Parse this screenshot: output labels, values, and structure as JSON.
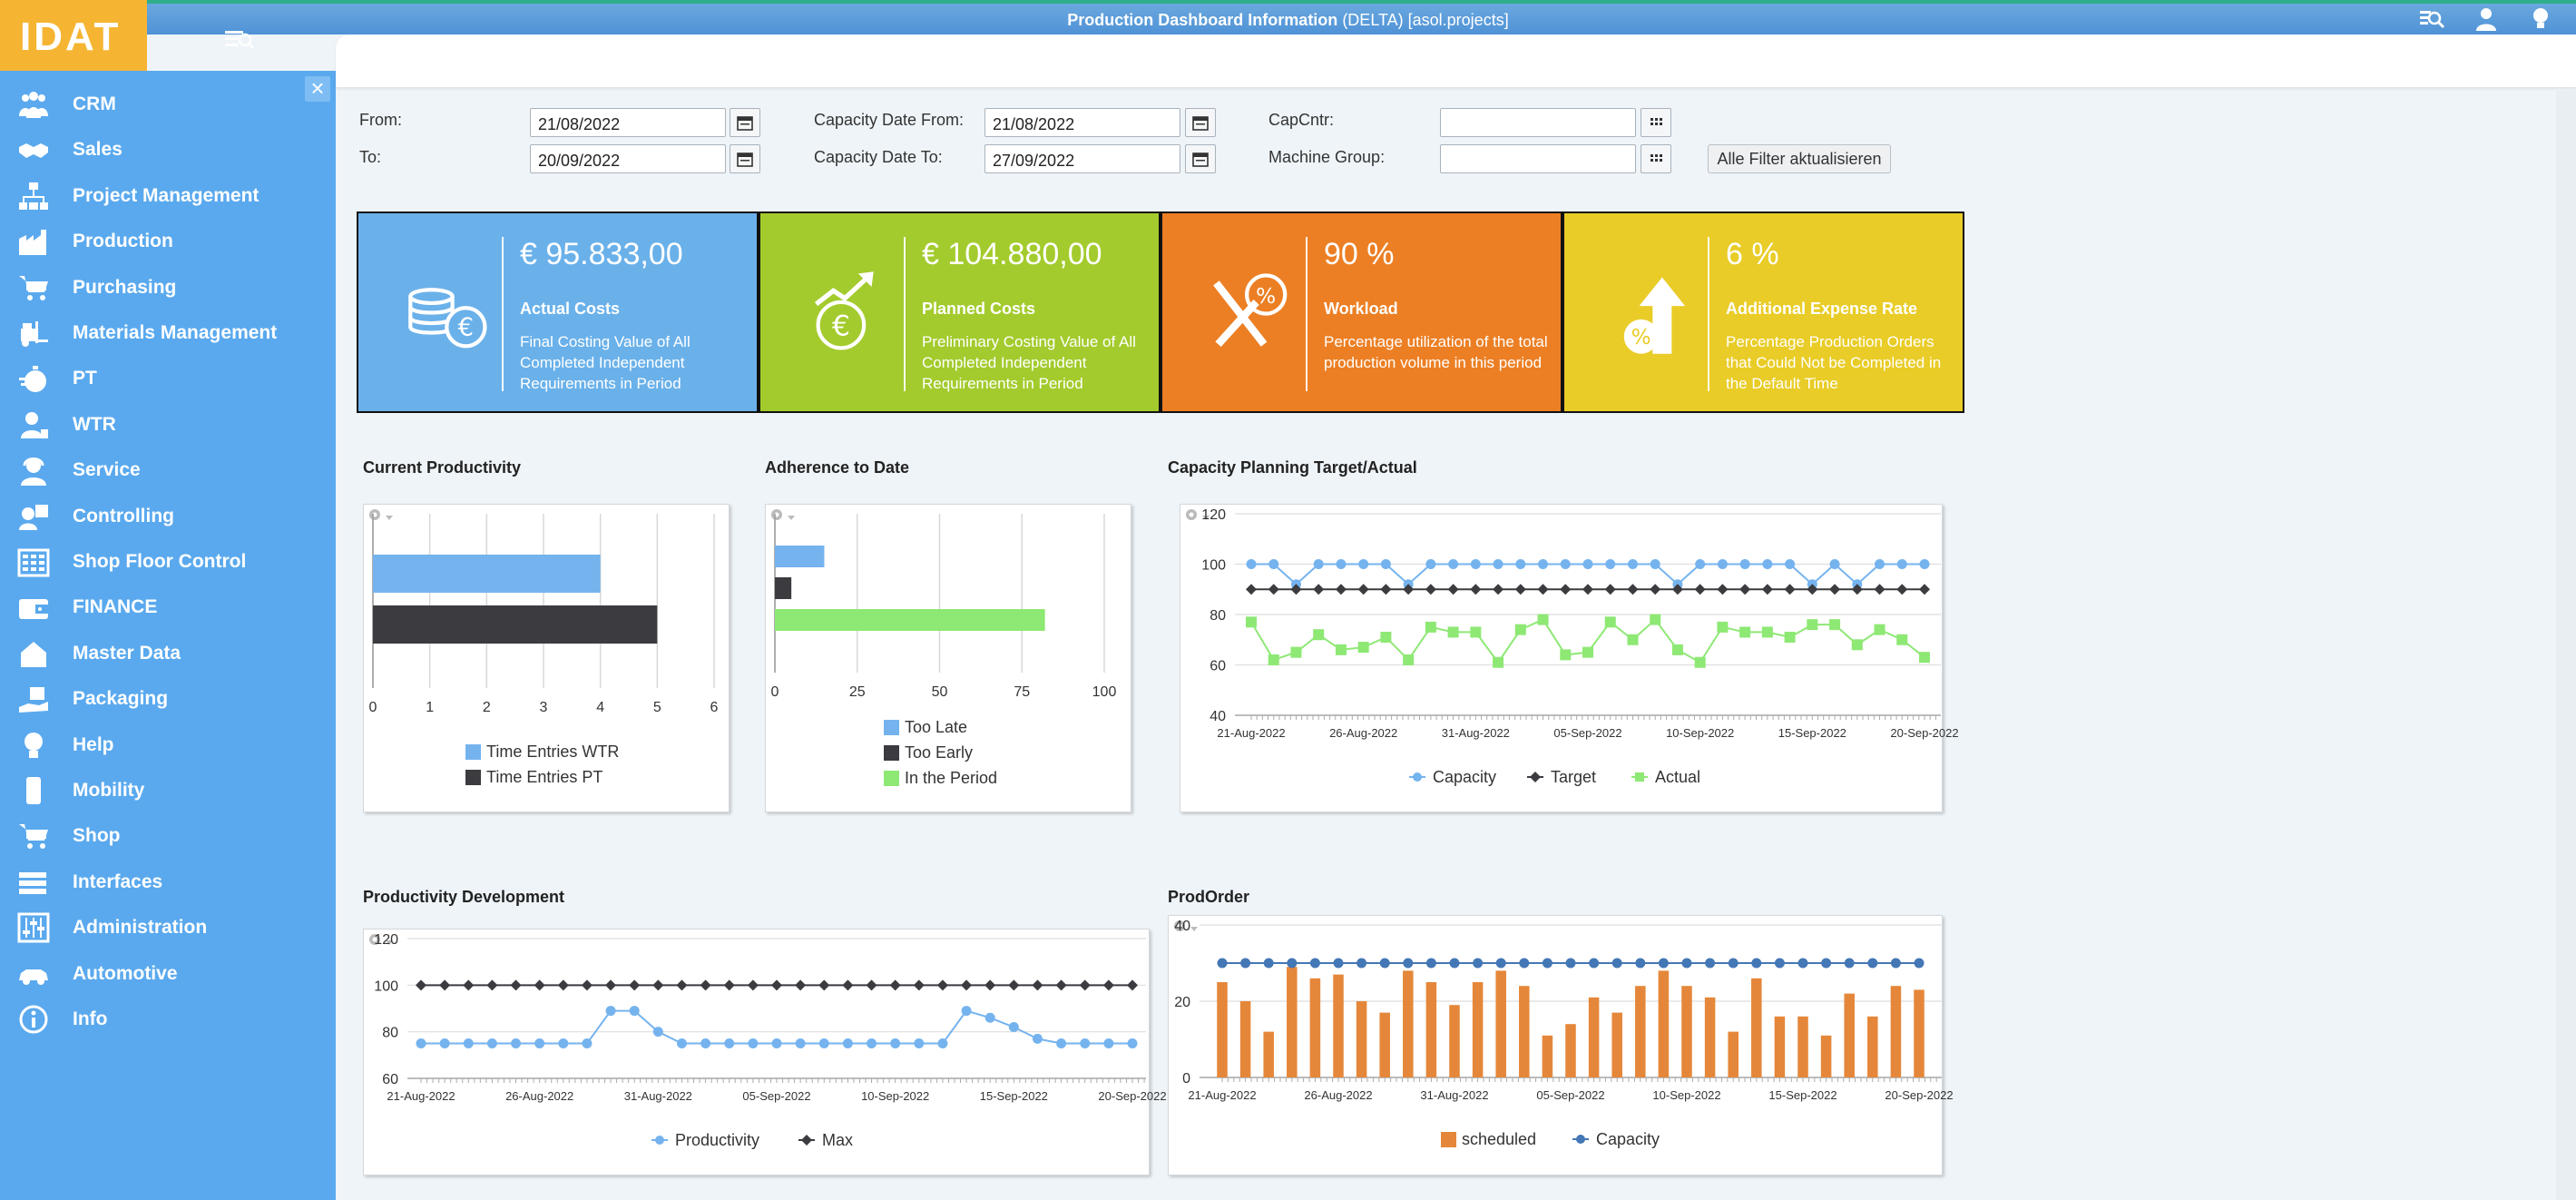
{
  "app": {
    "logo": "IDAT",
    "window_title_bold": "Production Dashboard Information",
    "window_title_rest": " (DELTA) [asol.projects]"
  },
  "sidebar": {
    "items": [
      {
        "label": "CRM",
        "icon": "people-icon"
      },
      {
        "label": "Sales",
        "icon": "handshake-icon"
      },
      {
        "label": "Project Management",
        "icon": "org-chart-icon"
      },
      {
        "label": "Production",
        "icon": "factory-icon"
      },
      {
        "label": "Purchasing",
        "icon": "cart-icon"
      },
      {
        "label": "Materials Management",
        "icon": "forklift-icon"
      },
      {
        "label": "PT",
        "icon": "stopwatch-icon"
      },
      {
        "label": "WTR",
        "icon": "worker-icon"
      },
      {
        "label": "Service",
        "icon": "support-agent-icon"
      },
      {
        "label": "Controlling",
        "icon": "controlling-icon"
      },
      {
        "label": "Shop Floor Control",
        "icon": "grid-icon"
      },
      {
        "label": "FINANCE",
        "icon": "wallet-icon"
      },
      {
        "label": "Master Data",
        "icon": "house-icon"
      },
      {
        "label": "Packaging",
        "icon": "package-hand-icon"
      },
      {
        "label": "Help",
        "icon": "bulb-icon"
      },
      {
        "label": "Mobility",
        "icon": "phone-icon"
      },
      {
        "label": "Shop",
        "icon": "shop-cart-icon"
      },
      {
        "label": "Interfaces",
        "icon": "interfaces-icon"
      },
      {
        "label": "Administration",
        "icon": "sliders-icon"
      },
      {
        "label": "Automotive",
        "icon": "car-icon"
      },
      {
        "label": "Info",
        "icon": "info-icon"
      }
    ]
  },
  "filters": {
    "from_label": "From:",
    "from_value": "21/08/2022",
    "to_label": "To:",
    "to_value": "20/09/2022",
    "cap_from_label": "Capacity Date From:",
    "cap_from_value": "21/08/2022",
    "cap_to_label": "Capacity Date To:",
    "cap_to_value": "27/09/2022",
    "capcntr_label": "CapCntr:",
    "capcntr_value": "",
    "machine_group_label": "Machine Group:",
    "machine_group_value": "",
    "apply_label": "Alle Filter aktualisieren"
  },
  "kpis": [
    {
      "value": "€ 95.833,00",
      "title": "Actual Costs",
      "desc": "Final Costing Value of All Completed Independent Requirements in Period",
      "color": "#6ab1ea",
      "icon": "coins-euro-icon"
    },
    {
      "value": "€ 104.880,00",
      "title": "Planned Costs",
      "desc": "Preliminary Costing Value of All Completed Independent Requirements in Period",
      "color": "#a3cb2d",
      "icon": "euro-growth-icon"
    },
    {
      "value": "90 %",
      "title": "Workload",
      "desc": "Percentage utilization of the total production volume in this period",
      "color": "#ec7f24",
      "icon": "tools-percent-icon"
    },
    {
      "value": "6 %",
      "title": "Additional Expense Rate",
      "desc": "Percentage Production Orders that Could Not be Completed in the Default Time",
      "color": "#e9cc27",
      "icon": "percent-arrow-icon"
    }
  ],
  "charts": {
    "productivity_title": "Current Productivity",
    "adherence_title": "Adherence to Date",
    "capacity_title": "Capacity Planning Target/Actual",
    "devel_title": "Productivity Development",
    "prodorder_title": "ProdOrder"
  },
  "colors": {
    "blue": "#75b3ee",
    "dark": "#3b3b40",
    "green": "#8ee874",
    "orange": "#e5873a",
    "navy": "#4477b5"
  },
  "chart_data": [
    {
      "id": "current-productivity",
      "type": "bar",
      "orientation": "horizontal",
      "series": [
        {
          "name": "Time Entries WTR",
          "values": [
            4
          ]
        },
        {
          "name": "Time Entries PT",
          "values": [
            5
          ]
        }
      ],
      "xticks": [
        "0",
        "1",
        "2",
        "3",
        "4",
        "5",
        "6"
      ],
      "xlim": [
        0,
        6
      ],
      "legend": "bottom"
    },
    {
      "id": "adherence-to-date",
      "type": "bar",
      "orientation": "horizontal",
      "series": [
        {
          "name": "Too Late",
          "values": [
            15
          ]
        },
        {
          "name": "Too Early",
          "values": [
            5
          ]
        },
        {
          "name": "In the Period",
          "values": [
            82
          ]
        }
      ],
      "xticks": [
        "0",
        "25",
        "50",
        "75",
        "100"
      ],
      "xlim": [
        0,
        100
      ],
      "legend": "bottom"
    },
    {
      "id": "capacity-planning",
      "type": "line",
      "x": [
        "21-Aug-2022",
        "22-Aug-2022",
        "23-Aug-2022",
        "24-Aug-2022",
        "25-Aug-2022",
        "26-Aug-2022",
        "27-Aug-2022",
        "28-Aug-2022",
        "29-Aug-2022",
        "30-Aug-2022",
        "31-Aug-2022",
        "01-Sep-2022",
        "02-Sep-2022",
        "03-Sep-2022",
        "04-Sep-2022",
        "05-Sep-2022",
        "06-Sep-2022",
        "07-Sep-2022",
        "08-Sep-2022",
        "09-Sep-2022",
        "10-Sep-2022",
        "11-Sep-2022",
        "12-Sep-2022",
        "13-Sep-2022",
        "14-Sep-2022",
        "15-Sep-2022",
        "16-Sep-2022",
        "17-Sep-2022",
        "18-Sep-2022",
        "19-Sep-2022",
        "20-Sep-2022"
      ],
      "xticks": [
        "21-Aug-2022",
        "26-Aug-2022",
        "31-Aug-2022",
        "05-Sep-2022",
        "10-Sep-2022",
        "15-Sep-2022",
        "20-Sep-2022"
      ],
      "yticks": [
        "40",
        "60",
        "80",
        "100",
        "120"
      ],
      "ylim": [
        40,
        120
      ],
      "series": [
        {
          "name": "Capacity",
          "values": [
            100,
            100,
            92,
            100,
            100,
            100,
            100,
            92,
            100,
            100,
            100,
            100,
            100,
            100,
            100,
            100,
            100,
            100,
            100,
            92,
            100,
            100,
            100,
            100,
            100,
            92,
            100,
            92,
            100,
            100,
            100
          ]
        },
        {
          "name": "Target",
          "values": [
            90,
            90,
            90,
            90,
            90,
            90,
            90,
            90,
            90,
            90,
            90,
            90,
            90,
            90,
            90,
            90,
            90,
            90,
            90,
            90,
            90,
            90,
            90,
            90,
            90,
            90,
            90,
            90,
            90,
            90,
            90
          ]
        },
        {
          "name": "Actual",
          "values": [
            77,
            62,
            65,
            72,
            66,
            67,
            71,
            62,
            75,
            73,
            73,
            61,
            74,
            78,
            64,
            65,
            77,
            70,
            78,
            66,
            61,
            75,
            73,
            73,
            71,
            76,
            76,
            68,
            74,
            70,
            63
          ]
        }
      ],
      "legend": "bottom"
    },
    {
      "id": "productivity-development",
      "type": "line",
      "x": [
        "21-Aug-2022",
        "22-Aug-2022",
        "23-Aug-2022",
        "24-Aug-2022",
        "25-Aug-2022",
        "26-Aug-2022",
        "27-Aug-2022",
        "28-Aug-2022",
        "29-Aug-2022",
        "30-Aug-2022",
        "31-Aug-2022",
        "01-Sep-2022",
        "02-Sep-2022",
        "03-Sep-2022",
        "04-Sep-2022",
        "05-Sep-2022",
        "06-Sep-2022",
        "07-Sep-2022",
        "08-Sep-2022",
        "09-Sep-2022",
        "10-Sep-2022",
        "11-Sep-2022",
        "12-Sep-2022",
        "13-Sep-2022",
        "14-Sep-2022",
        "15-Sep-2022",
        "16-Sep-2022",
        "17-Sep-2022",
        "18-Sep-2022",
        "19-Sep-2022",
        "20-Sep-2022"
      ],
      "xticks": [
        "21-Aug-2022",
        "26-Aug-2022",
        "31-Aug-2022",
        "05-Sep-2022",
        "10-Sep-2022",
        "15-Sep-2022",
        "20-Sep-2022"
      ],
      "yticks": [
        "60",
        "80",
        "100",
        "120"
      ],
      "ylim": [
        60,
        120
      ],
      "series": [
        {
          "name": "Productivity",
          "values": [
            75,
            75,
            75,
            75,
            75,
            75,
            75,
            75,
            89,
            89,
            80,
            75,
            75,
            75,
            75,
            75,
            75,
            75,
            75,
            75,
            75,
            75,
            75,
            89,
            86,
            82,
            77,
            75,
            75,
            75,
            75
          ]
        },
        {
          "name": "Max",
          "values": [
            100,
            100,
            100,
            100,
            100,
            100,
            100,
            100,
            100,
            100,
            100,
            100,
            100,
            100,
            100,
            100,
            100,
            100,
            100,
            100,
            100,
            100,
            100,
            100,
            100,
            100,
            100,
            100,
            100,
            100,
            100
          ]
        }
      ],
      "legend": "bottom"
    },
    {
      "id": "prod-order",
      "type": "bar",
      "x": [
        "21-Aug-2022",
        "22-Aug-2022",
        "23-Aug-2022",
        "24-Aug-2022",
        "25-Aug-2022",
        "26-Aug-2022",
        "27-Aug-2022",
        "28-Aug-2022",
        "29-Aug-2022",
        "30-Aug-2022",
        "31-Aug-2022",
        "01-Sep-2022",
        "02-Sep-2022",
        "03-Sep-2022",
        "04-Sep-2022",
        "05-Sep-2022",
        "06-Sep-2022",
        "07-Sep-2022",
        "08-Sep-2022",
        "09-Sep-2022",
        "10-Sep-2022",
        "11-Sep-2022",
        "12-Sep-2022",
        "13-Sep-2022",
        "14-Sep-2022",
        "15-Sep-2022",
        "16-Sep-2022",
        "17-Sep-2022",
        "18-Sep-2022",
        "19-Sep-2022",
        "20-Sep-2022"
      ],
      "xticks": [
        "21-Aug-2022",
        "26-Aug-2022",
        "31-Aug-2022",
        "05-Sep-2022",
        "10-Sep-2022",
        "15-Sep-2022",
        "20-Sep-2022"
      ],
      "yticks": [
        "0",
        "20",
        "40"
      ],
      "ylim": [
        0,
        40
      ],
      "series": [
        {
          "name": "scheduled",
          "kind": "bar",
          "values": [
            25,
            20,
            12,
            29,
            26,
            27,
            20,
            17,
            28,
            25,
            19,
            25,
            28,
            24,
            11,
            14,
            21,
            17,
            24,
            28,
            24,
            21,
            12,
            26,
            16,
            16,
            11,
            22,
            16,
            24,
            23
          ]
        },
        {
          "name": "Capacity",
          "kind": "line",
          "values": [
            30,
            30,
            30,
            30,
            30,
            30,
            30,
            30,
            30,
            30,
            30,
            30,
            30,
            30,
            30,
            30,
            30,
            30,
            30,
            30,
            30,
            30,
            30,
            30,
            30,
            30,
            30,
            30,
            30,
            30,
            30
          ]
        }
      ],
      "legend": "bottom"
    }
  ]
}
